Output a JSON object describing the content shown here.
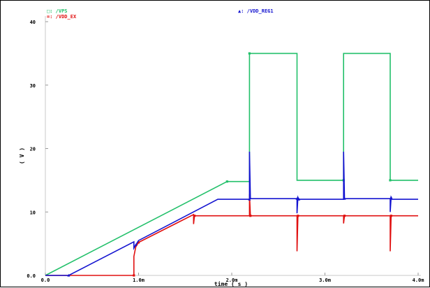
{
  "chart_data": {
    "type": "line",
    "title": "",
    "xlabel": "time ( s )",
    "ylabel": "( V )",
    "xlim": [
      0,
      0.004
    ],
    "ylim": [
      0,
      40
    ],
    "xticks": [
      {
        "value": 0,
        "label": "0.0"
      },
      {
        "value": 0.001,
        "label": "1.0m"
      },
      {
        "value": 0.002,
        "label": "2.0m"
      },
      {
        "value": 0.003,
        "label": "3.0m"
      },
      {
        "value": 0.004,
        "label": "4.0m"
      }
    ],
    "yticks": [
      {
        "value": 0,
        "label": "0.0"
      },
      {
        "value": 10,
        "label": "10"
      },
      {
        "value": 20,
        "label": "20"
      },
      {
        "value": 30,
        "label": "30"
      },
      {
        "value": 40,
        "label": "40"
      }
    ],
    "legend_position": "top",
    "series": [
      {
        "name": "/VPS",
        "legend_prefix": "□: ",
        "color": "#22c06a",
        "points": [
          [
            0,
            0
          ],
          [
            0.00195,
            14.8
          ],
          [
            0.00219,
            14.8
          ],
          [
            0.00219,
            35
          ],
          [
            0.00219,
            35
          ],
          [
            0.0027,
            35
          ],
          [
            0.0027,
            15
          ],
          [
            0.0032,
            15
          ],
          [
            0.0032,
            35
          ],
          [
            0.0037,
            35
          ],
          [
            0.0037,
            15
          ],
          [
            0.004,
            15
          ]
        ]
      },
      {
        "name": "/VDD_EX",
        "legend_prefix": "=: ",
        "color": "#e01010",
        "points": [
          [
            0,
            0
          ],
          [
            0.00095,
            0
          ],
          [
            0.00095,
            3.0
          ],
          [
            0.00097,
            4.5
          ],
          [
            0.001,
            5.2
          ],
          [
            0.00159,
            9.6
          ],
          [
            0.00159,
            8.1
          ],
          [
            0.0016,
            9.4
          ],
          [
            0.00219,
            9.4
          ],
          [
            0.00219,
            12.8
          ],
          [
            0.0022,
            9.4
          ],
          [
            0.0027,
            9.4
          ],
          [
            0.0027,
            3.8
          ],
          [
            0.00271,
            9.4
          ],
          [
            0.0032,
            9.4
          ],
          [
            0.0032,
            8.2
          ],
          [
            0.00321,
            9.4
          ],
          [
            0.0037,
            9.4
          ],
          [
            0.0037,
            3.8
          ],
          [
            0.00371,
            9.4
          ],
          [
            0.004,
            9.4
          ]
        ]
      },
      {
        "name": "/VDD_REG1",
        "legend_prefix": "▲: ",
        "color": "#1414d0",
        "points": [
          [
            0,
            0
          ],
          [
            0.00025,
            0
          ],
          [
            0.00095,
            5.3
          ],
          [
            0.00095,
            4.3
          ],
          [
            0.00097,
            4.8
          ],
          [
            0.001,
            5.5
          ],
          [
            0.00185,
            12.0
          ],
          [
            0.00219,
            12.0
          ],
          [
            0.00219,
            19.5
          ],
          [
            0.0022,
            12.1
          ],
          [
            0.0027,
            12.1
          ],
          [
            0.0027,
            9.8
          ],
          [
            0.00271,
            12.3
          ],
          [
            0.00272,
            12.0
          ],
          [
            0.0032,
            12.0
          ],
          [
            0.0032,
            19.5
          ],
          [
            0.00321,
            12.1
          ],
          [
            0.0037,
            12.1
          ],
          [
            0.0037,
            10.0
          ],
          [
            0.00371,
            12.3
          ],
          [
            0.00372,
            12.0
          ],
          [
            0.004,
            12.0
          ]
        ]
      }
    ]
  }
}
